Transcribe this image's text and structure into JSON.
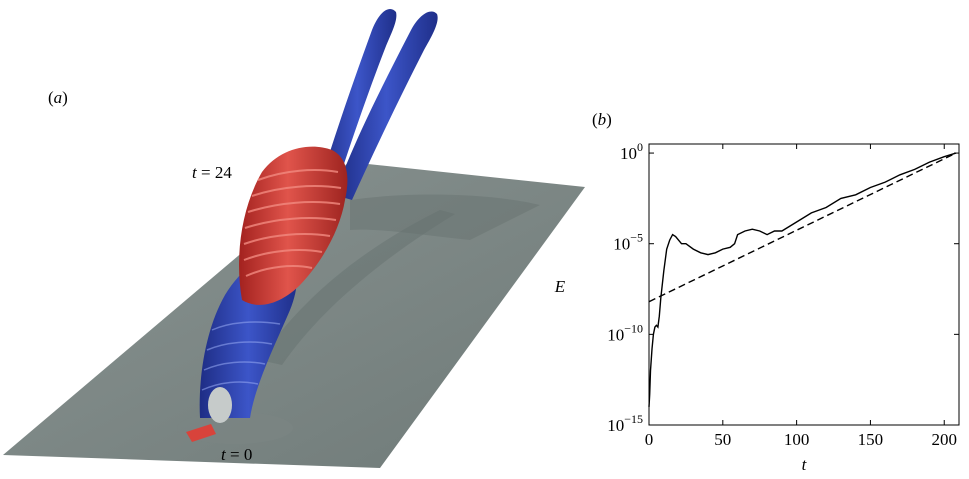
{
  "panels": {
    "a": {
      "label_open": "(",
      "label_letter": "a",
      "label_close": ")",
      "time_top_var": "t",
      "time_top_eq": " = 24",
      "time_bottom_var": "t",
      "time_bottom_eq": " = 0",
      "colors": {
        "plate": "#7f8a88",
        "positive": "#cf3b35",
        "negative": "#2b3fa2"
      }
    },
    "b": {
      "label_open": "(",
      "label_letter": "b",
      "label_close": ")"
    }
  },
  "chart_data": {
    "type": "line",
    "xlabel": "t",
    "ylabel": "E",
    "xlim": [
      0,
      210
    ],
    "ylim_log10": [
      -15,
      0.5
    ],
    "yscale": "log",
    "x_ticks": [
      0,
      50,
      100,
      150,
      200
    ],
    "y_ticks": [
      {
        "base": "10",
        "exp": "0",
        "log10": 0
      },
      {
        "base": "10",
        "exp": "−5",
        "log10": -5
      },
      {
        "base": "10",
        "exp": "−10",
        "log10": -10
      },
      {
        "base": "10",
        "exp": "−15",
        "log10": -15
      }
    ],
    "series": [
      {
        "style": "solid",
        "x": [
          0,
          0.5,
          1,
          2,
          3,
          4,
          5,
          6,
          7,
          8,
          10,
          12,
          14,
          16,
          18,
          20,
          22,
          25,
          30,
          35,
          40,
          45,
          50,
          55,
          58,
          60,
          65,
          70,
          75,
          80,
          85,
          90,
          100,
          110,
          120,
          130,
          140,
          150,
          160,
          170,
          180,
          190,
          200,
          208
        ],
        "log10E": [
          -14.0,
          -13.3,
          -12.0,
          -10.8,
          -10.0,
          -9.6,
          -9.5,
          -9.6,
          -9.0,
          -8.0,
          -6.5,
          -5.3,
          -4.8,
          -4.5,
          -4.6,
          -4.8,
          -5.0,
          -5.0,
          -5.3,
          -5.5,
          -5.6,
          -5.5,
          -5.3,
          -5.2,
          -5.0,
          -4.5,
          -4.3,
          -4.2,
          -4.3,
          -4.5,
          -4.3,
          -4.3,
          -3.8,
          -3.3,
          -3.0,
          -2.5,
          -2.3,
          -1.9,
          -1.6,
          -1.2,
          -0.9,
          -0.5,
          -0.2,
          0.0
        ]
      },
      {
        "style": "dashed",
        "x": [
          0,
          208
        ],
        "log10E": [
          -8.2,
          0.0
        ]
      }
    ]
  }
}
